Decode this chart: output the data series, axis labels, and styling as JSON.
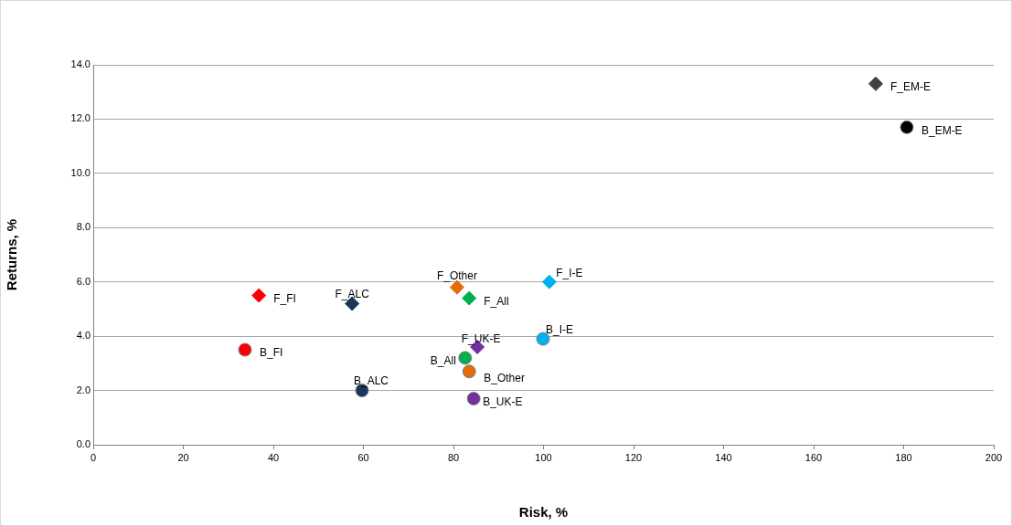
{
  "chart_data": {
    "type": "scatter",
    "xlabel": "Risk, %",
    "ylabel": "Returns, %",
    "xlim": [
      0,
      200
    ],
    "xticks": [
      0,
      20,
      40,
      60,
      80,
      100,
      120,
      140,
      160,
      180,
      200
    ],
    "ylim": [
      0,
      14
    ],
    "yticks": [
      {
        "value": 0,
        "label": "0.0"
      },
      {
        "value": 2,
        "label": "2.0"
      },
      {
        "value": 4,
        "label": "4.0"
      },
      {
        "value": 6,
        "label": "6.0"
      },
      {
        "value": 8,
        "label": "8.0"
      },
      {
        "value": 10,
        "label": "10.0"
      },
      {
        "value": 12,
        "label": "12.0"
      },
      {
        "value": 14,
        "label": "14.0"
      }
    ],
    "grid": "y",
    "legend": false,
    "series": [
      {
        "name": "F_FI",
        "color": "#ff0000",
        "marker": "diamond",
        "x": [
          36.8
        ],
        "values": [
          5.5
        ]
      },
      {
        "name": "B_FI",
        "color": "#ff0000",
        "marker": "circle",
        "x": [
          33.7
        ],
        "values": [
          3.5
        ]
      },
      {
        "name": "F_ALC",
        "color": "#17375e",
        "marker": "diamond",
        "x": [
          57.5
        ],
        "values": [
          5.2
        ]
      },
      {
        "name": "B_ALC",
        "color": "#17375e",
        "marker": "circle",
        "x": [
          59.7
        ],
        "values": [
          2.0
        ]
      },
      {
        "name": "F_Other",
        "color": "#e36c09",
        "marker": "diamond",
        "x": [
          80.8
        ],
        "values": [
          5.8
        ]
      },
      {
        "name": "B_Other",
        "color": "#e36c09",
        "marker": "circle",
        "x": [
          83.5
        ],
        "values": [
          2.7
        ]
      },
      {
        "name": "F_All",
        "color": "#00b050",
        "marker": "diamond",
        "x": [
          83.5
        ],
        "values": [
          5.4
        ]
      },
      {
        "name": "B_All",
        "color": "#00b050",
        "marker": "circle",
        "x": [
          82.6
        ],
        "values": [
          3.2
        ]
      },
      {
        "name": "F_UK-E",
        "color": "#7030a0",
        "marker": "diamond",
        "x": [
          85.3
        ],
        "values": [
          3.6
        ]
      },
      {
        "name": "B_UK-E",
        "color": "#7030a0",
        "marker": "circle",
        "x": [
          84.5
        ],
        "values": [
          1.7
        ]
      },
      {
        "name": "F_I-E",
        "color": "#00b0f0",
        "marker": "diamond",
        "x": [
          101.3
        ],
        "values": [
          6.0
        ]
      },
      {
        "name": "B_I-E",
        "color": "#00b0f0",
        "marker": "circle",
        "x": [
          99.9
        ],
        "values": [
          3.9
        ]
      },
      {
        "name": "F_EM-E",
        "color": "#404040",
        "marker": "diamond",
        "x": [
          173.8
        ],
        "values": [
          13.3
        ]
      },
      {
        "name": "B_EM-E",
        "color": "#000000",
        "marker": "circle",
        "x": [
          180.7
        ],
        "values": [
          11.7
        ]
      }
    ]
  }
}
